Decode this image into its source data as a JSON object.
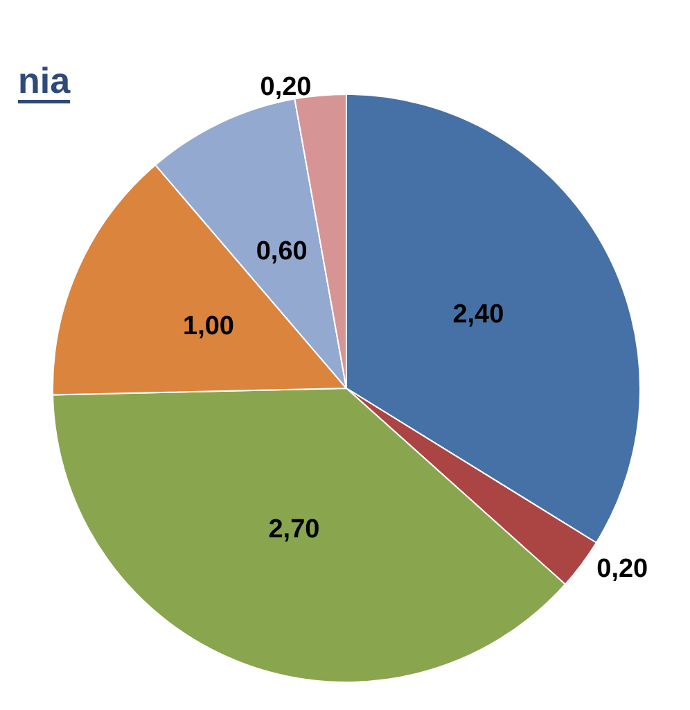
{
  "chart_data": {
    "type": "pie",
    "title": "nia",
    "categories": [
      null,
      null,
      null,
      null,
      null,
      null
    ],
    "values": [
      2.4,
      0.2,
      2.7,
      1.0,
      0.6,
      0.2
    ],
    "value_labels": [
      "2,40",
      "0,20",
      "2,70",
      "1,00",
      "0,60",
      "0,20"
    ],
    "colors": [
      "#4671a6",
      "#aa4543",
      "#89a54e",
      "#db843d",
      "#93a9cf",
      "#d69594"
    ]
  }
}
